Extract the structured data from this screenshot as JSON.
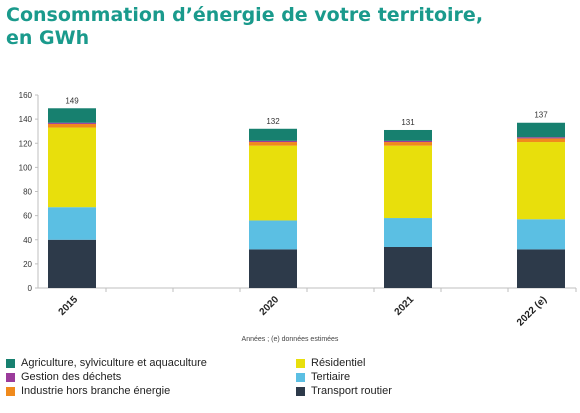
{
  "title_line1": "Consommation d’énergie de votre territoire,",
  "title_line2": "en GWh",
  "chart_data": {
    "type": "bar",
    "stacked": true,
    "categories": [
      "2015",
      "2020",
      "2021",
      "2022 (e)"
    ],
    "totals": [
      149,
      132,
      131,
      137
    ],
    "ylim": [
      0,
      160
    ],
    "yticks": [
      0,
      20,
      40,
      60,
      80,
      100,
      120,
      140,
      160
    ],
    "xlabel": "Années ; (e) données estimées",
    "grid": false,
    "legend_position": "bottom",
    "series": [
      {
        "name": "Transport routier",
        "color": "#2d3a4a",
        "values": [
          40,
          32,
          34,
          32
        ]
      },
      {
        "name": "Tertiaire",
        "color": "#5bbfe3",
        "values": [
          27,
          24,
          24,
          25
        ]
      },
      {
        "name": "Résidentiel",
        "color": "#e8df0c",
        "values": [
          66,
          62,
          60,
          64
        ]
      },
      {
        "name": "Industrie hors branche énergie",
        "color": "#f08a1c",
        "values": [
          3,
          3,
          3,
          3
        ]
      },
      {
        "name": "Gestion des déchets",
        "color": "#9b3b9b",
        "values": [
          1,
          1,
          1,
          1
        ]
      },
      {
        "name": "Agriculture, sylviculture et aquaculture",
        "color": "#17806f",
        "values": [
          12,
          10,
          9,
          12
        ]
      }
    ]
  },
  "legend": [
    {
      "label": "Agriculture, sylviculture et aquaculture",
      "color": "#17806f"
    },
    {
      "label": "Gestion des déchets",
      "color": "#9b3b9b"
    },
    {
      "label": "Industrie hors branche énergie",
      "color": "#f08a1c"
    },
    {
      "label": "Résidentiel",
      "color": "#e8df0c"
    },
    {
      "label": "Tertiaire",
      "color": "#5bbfe3"
    },
    {
      "label": "Transport routier",
      "color": "#2d3a4a"
    }
  ]
}
